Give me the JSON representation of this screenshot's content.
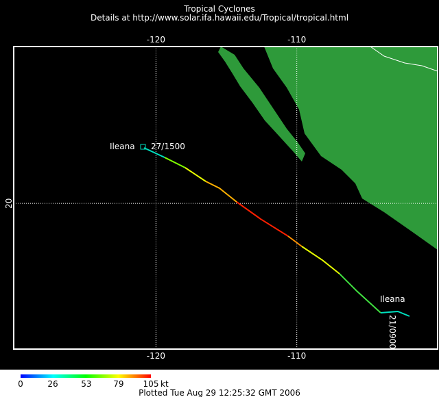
{
  "header": {
    "title": "Tropical Cyclones",
    "subtitle": "Details at http://www.solar.ifa.hawaii.edu/Tropical/tropical.html"
  },
  "map": {
    "xlim": [
      -130.1,
      -100
    ],
    "ylim": [
      9.6,
      31.2
    ],
    "xticks": [
      -120,
      -110
    ],
    "yticks": [
      20
    ],
    "labels": {
      "start_name": "Ileana",
      "start_time": "27/1500",
      "end_name": "Ileana",
      "end_time": "21/0900"
    }
  },
  "colorbar": {
    "ticks": [
      0,
      26,
      53,
      79,
      105
    ],
    "unit": "kt"
  },
  "footer": "Plotted Tue Aug 29 12:25:32 GMT 2006"
}
